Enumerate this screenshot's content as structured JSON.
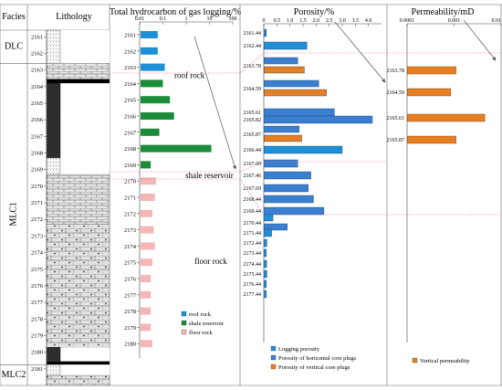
{
  "headers": {
    "facies": "Facies",
    "lithology": "Lithology",
    "gas": "Total hydrocarbon of gas logging/%",
    "porosity": "Porosity/%",
    "permeability": "Permeability/mD"
  },
  "colors": {
    "roof_rock": "#1f8fd6",
    "shale_reservoir": "#1a8c3a",
    "floor_rock": "#f4b6b6",
    "logging_porosity": "#1f8fd6",
    "horizontal_core": "#3a7fd0",
    "vertical_core": "#e67e22",
    "vertical_permeability": "#e67e22",
    "boundary_line": "#e06080",
    "arrow": "#555555"
  },
  "facies": [
    {
      "label": "DLC",
      "depth_from": 2160.6,
      "depth_to": 2162.6
    },
    {
      "label": "MLC1",
      "depth_from": 2162.6,
      "depth_to": 2180.75
    },
    {
      "label": "MLC2",
      "depth_from": 2180.75,
      "depth_to": 2182.0
    }
  ],
  "lithology": {
    "depth_ticks": [
      2161,
      2162,
      2163,
      2164,
      2165,
      2166,
      2167,
      2168,
      2169,
      2170,
      2171,
      2172,
      2173,
      2174,
      2175,
      2176,
      2177,
      2178,
      2179,
      2180,
      2181
    ],
    "layers": [
      {
        "type": "dotted",
        "from": 2160.6,
        "to": 2162.6
      },
      {
        "type": "limestone",
        "from": 2162.6,
        "to": 2163.55
      },
      {
        "type": "black",
        "from": 2163.55,
        "to": 2163.8
      },
      {
        "type": "dark",
        "from": 2163.8,
        "to": 2168.3
      },
      {
        "type": "dotted",
        "from": 2168.3,
        "to": 2169.3
      },
      {
        "type": "limestone",
        "from": 2169.3,
        "to": 2172.3
      },
      {
        "type": "marl",
        "from": 2172.3,
        "to": 2179.7
      },
      {
        "type": "dark",
        "from": 2179.7,
        "to": 2180.55
      },
      {
        "type": "black",
        "from": 2180.55,
        "to": 2180.75
      },
      {
        "type": "dotted",
        "from": 2180.75,
        "to": 2181.4
      },
      {
        "type": "marl",
        "from": 2181.4,
        "to": 2182.0
      }
    ]
  },
  "chart_data": [
    {
      "type": "bar",
      "orientation": "horizontal",
      "title": "Total hydrocarbon of gas logging/%",
      "x_scale": "log",
      "xlim": [
        0.01,
        100
      ],
      "x_tick_labels": [
        "0.01",
        "0.1",
        "1",
        "10",
        "100"
      ],
      "ylabel": "depth",
      "categories": [
        "2161",
        "2162",
        "2163",
        "2164",
        "2165",
        "2166",
        "2167",
        "2168",
        "2169",
        "2170",
        "2171",
        "2172",
        "2173",
        "2174",
        "2175",
        "2176",
        "2177",
        "2178",
        "2179",
        "2180"
      ],
      "values": [
        0.06,
        0.06,
        0.12,
        0.1,
        0.2,
        0.3,
        0.07,
        12,
        0.03,
        0.05,
        0.045,
        0.035,
        0.04,
        0.045,
        0.035,
        0.03,
        0.03,
        0.03,
        0.03,
        0.035
      ],
      "groups": [
        "roof rock",
        "roof rock",
        "roof rock",
        "shale reservoir",
        "shale reservoir",
        "shale reservoir",
        "shale reservoir",
        "shale reservoir",
        "shale reservoir",
        "floor rock",
        "floor rock",
        "floor rock",
        "floor rock",
        "floor rock",
        "floor rock",
        "floor rock",
        "floor rock",
        "floor rock",
        "floor rock",
        "floor rock"
      ],
      "legend": [
        "roof rock",
        "shale reservoir",
        "floor rock"
      ],
      "legend_position": "bottom-right",
      "annotations": [
        "roof rock",
        "shale reservoir",
        "floor rock"
      ]
    },
    {
      "type": "bar",
      "orientation": "horizontal",
      "title": "Porosity/%",
      "xlim": [
        0,
        4.5
      ],
      "x_tick_labels": [
        "0",
        "0.5",
        "1.0",
        "1.5",
        "2.0",
        "2.5",
        "3.0",
        "3.5",
        "4.0"
      ],
      "categories": [
        "2161.44",
        "2162.44",
        "2163.78",
        "2164.59",
        "2165.61",
        "2165.82",
        "2165.87",
        "2166.44",
        "2167.09",
        "2167.46",
        "2167.69",
        "2168.44",
        "2169.44",
        "2170.44",
        "2171.44",
        "2172.44",
        "2173.44",
        "2174.44",
        "2175.44",
        "2176.44",
        "2177.44"
      ],
      "series": [
        {
          "name": "Logging porosity",
          "values": [
            0.1,
            1.65,
            null,
            null,
            null,
            null,
            null,
            3.0,
            null,
            null,
            null,
            null,
            null,
            0.35,
            0.3,
            0.12,
            0.1,
            0.11,
            0.12,
            0.1,
            0.1
          ]
        },
        {
          "name": "Porosity of horizontal core plugs",
          "values": [
            null,
            null,
            1.3,
            2.1,
            2.7,
            4.15,
            1.35,
            null,
            1.3,
            1.8,
            1.7,
            1.9,
            2.3,
            0.9,
            null,
            null,
            null,
            null,
            null,
            null,
            null
          ]
        },
        {
          "name": "Porosity of vertical core plugs",
          "values": [
            null,
            null,
            1.55,
            2.4,
            null,
            null,
            1.45,
            null,
            null,
            null,
            null,
            null,
            null,
            null,
            null,
            null,
            null,
            null,
            null,
            null,
            null
          ]
        }
      ],
      "legend_position": "bottom-center"
    },
    {
      "type": "bar",
      "orientation": "horizontal",
      "title": "Permeability/mD",
      "x_scale": "log",
      "xlim": [
        0.0001,
        0.01
      ],
      "x_tick_labels": [
        "0.0001",
        "0.001",
        "0.01"
      ],
      "categories": [
        "2163.78",
        "2164.59",
        "2165.61",
        "2165.87"
      ],
      "series": [
        {
          "name": "Vertical permeability",
          "values": [
            0.0011,
            0.00085,
            0.0045,
            0.0011
          ]
        }
      ],
      "legend_position": "bottom-center"
    }
  ]
}
